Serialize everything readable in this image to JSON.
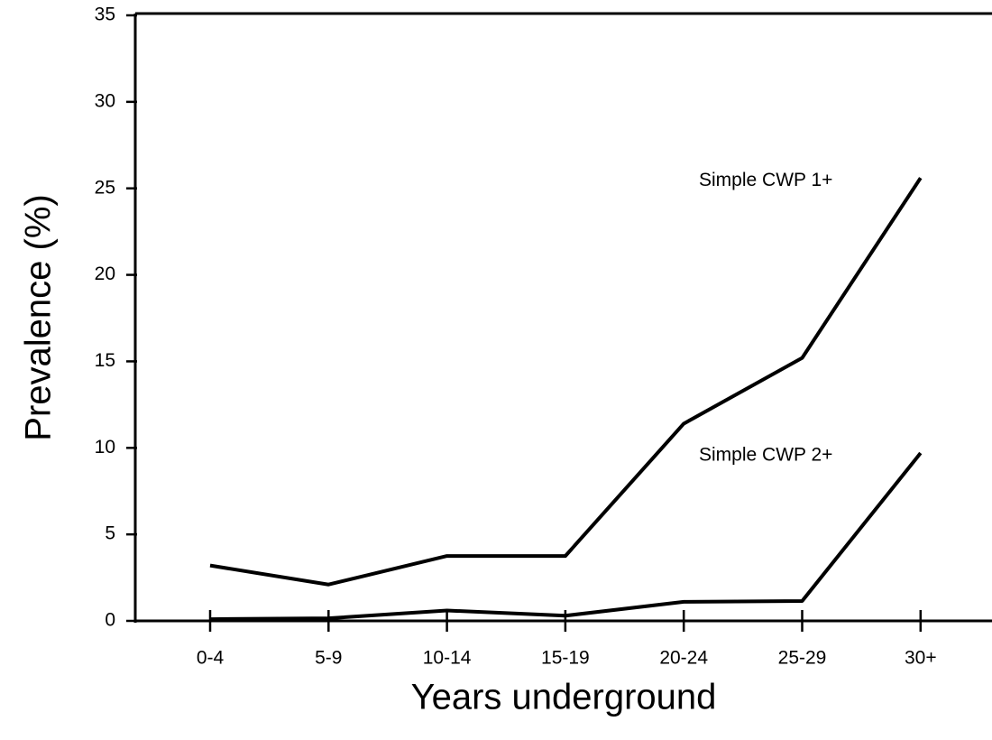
{
  "chart_data": {
    "type": "line",
    "x_label": "Years underground",
    "y_label": "Prevalence (%)",
    "categories": [
      "0-4",
      "5-9",
      "10-14",
      "15-19",
      "20-24",
      "25-29",
      "30+"
    ],
    "series": [
      {
        "name": "Simple CWP 1+",
        "color": "#000000",
        "values": [
          3.2,
          2.1,
          3.75,
          3.75,
          11.4,
          15.2,
          25.6
        ]
      },
      {
        "name": "Simple CWP 2+",
        "color": "#000000",
        "values": [
          0.1,
          0.15,
          0.6,
          0.3,
          1.1,
          1.15,
          9.7
        ]
      }
    ],
    "ylim": [
      0,
      35
    ],
    "yticks": [
      0,
      5,
      10,
      15,
      20,
      25,
      30,
      35
    ],
    "grid": false
  }
}
